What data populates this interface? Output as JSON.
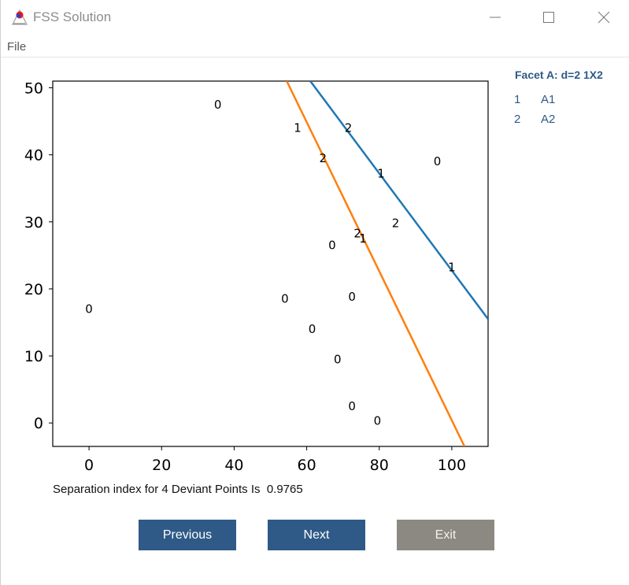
{
  "window": {
    "title": "FSS Solution"
  },
  "menu": {
    "file": "File"
  },
  "facet": {
    "title": "Facet A: d=2 1X2",
    "items": [
      {
        "num": "1",
        "label": "A1"
      },
      {
        "num": "2",
        "label": "A2"
      }
    ]
  },
  "chart_data": {
    "type": "scatter",
    "xlim": [
      -10,
      110
    ],
    "ylim": [
      -3.5,
      51
    ],
    "x_ticks": [
      0,
      20,
      40,
      60,
      80,
      100
    ],
    "y_ticks": [
      0,
      10,
      20,
      30,
      40,
      50
    ],
    "points": [
      {
        "x": 0,
        "y": 17,
        "label": "0"
      },
      {
        "x": 35.5,
        "y": 47.5,
        "label": "0"
      },
      {
        "x": 54,
        "y": 18.5,
        "label": "0"
      },
      {
        "x": 61.5,
        "y": 14,
        "label": "0"
      },
      {
        "x": 67,
        "y": 26.5,
        "label": "0"
      },
      {
        "x": 68.5,
        "y": 9.5,
        "label": "0"
      },
      {
        "x": 72.5,
        "y": 2.5,
        "label": "0"
      },
      {
        "x": 72.5,
        "y": 18.8,
        "label": "0"
      },
      {
        "x": 79.5,
        "y": 0.3,
        "label": "0"
      },
      {
        "x": 96,
        "y": 39,
        "label": "0"
      },
      {
        "x": 57.5,
        "y": 44,
        "label": "1"
      },
      {
        "x": 75.5,
        "y": 27.5,
        "label": "1"
      },
      {
        "x": 80.5,
        "y": 37.2,
        "label": "1"
      },
      {
        "x": 100,
        "y": 23.2,
        "label": "1"
      },
      {
        "x": 64.5,
        "y": 39.5,
        "label": "2"
      },
      {
        "x": 71.5,
        "y": 44,
        "label": "2"
      },
      {
        "x": 74,
        "y": 28.3,
        "label": "2"
      },
      {
        "x": 84.5,
        "y": 29.8,
        "label": "2"
      }
    ],
    "lines": [
      {
        "color": "#1f77b4",
        "from": [
          61,
          51
        ],
        "to": [
          110,
          15.5
        ]
      },
      {
        "color": "#ff7f0e",
        "from": [
          54.5,
          51
        ],
        "to": [
          103.5,
          -3.5
        ]
      }
    ]
  },
  "result": {
    "text": "Separation index for 4 Deviant Points Is  0.9765"
  },
  "buttons": {
    "previous": "Previous",
    "next": "Next",
    "exit": "Exit"
  }
}
